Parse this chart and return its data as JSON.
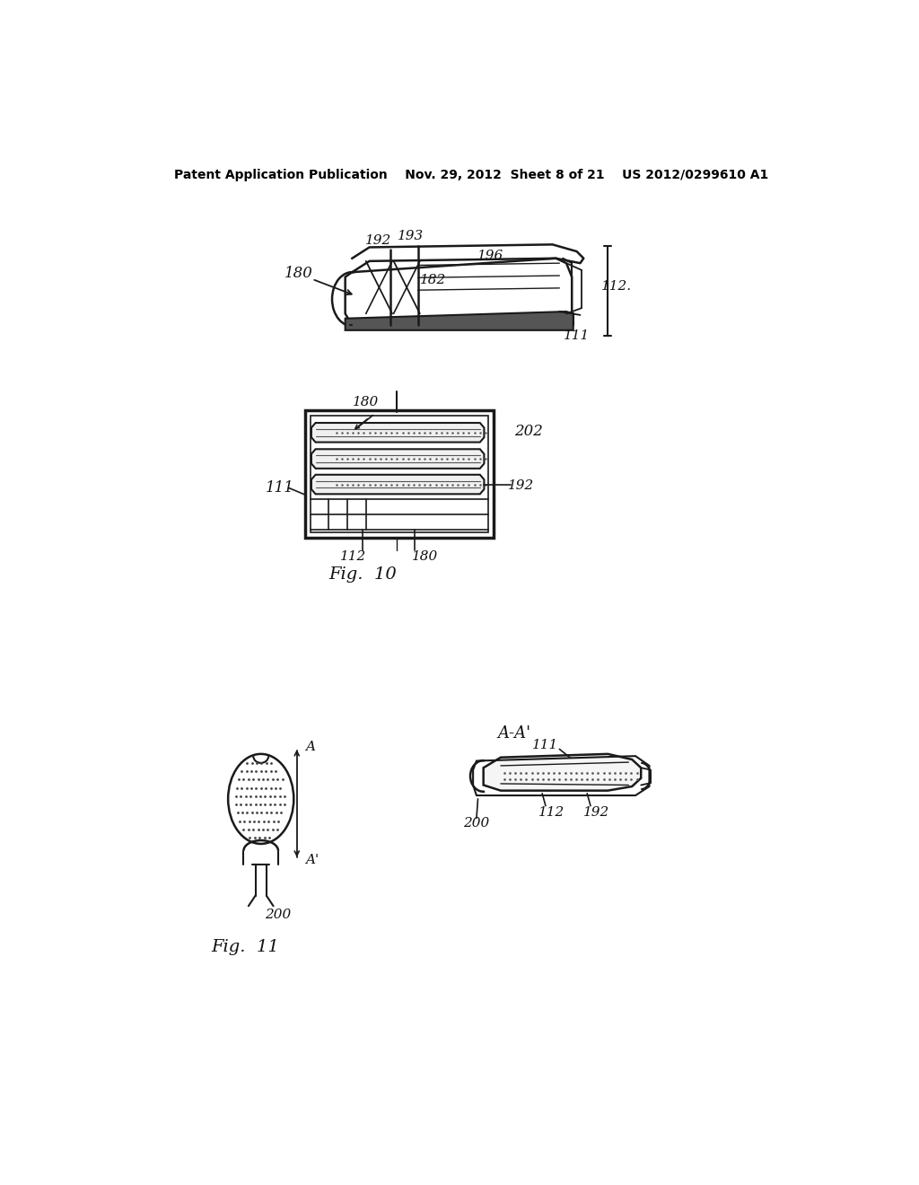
{
  "bg_color": "#ffffff",
  "header": "Patent Application Publication    Nov. 29, 2012  Sheet 8 of 21    US 2012/0299610 A1",
  "fig9": {
    "label_180": "180",
    "label_192": "192",
    "label_193": "193",
    "label_196": "196",
    "label_182": "182",
    "label_112": "112.",
    "label_111": "111"
  },
  "fig10": {
    "label_180": "180",
    "label_202": "202",
    "label_111": "111",
    "label_192": "192",
    "label_112": "112",
    "label_180b": "180",
    "fig_label": "Fig.  10"
  },
  "fig11": {
    "label_A": "A",
    "label_Ap": "A'",
    "label_AA": "A-A'",
    "label_111": "111",
    "label_112": "112",
    "label_192": "192",
    "label_200l": "200",
    "label_200r": "200",
    "fig_label": "Fig.  11"
  }
}
